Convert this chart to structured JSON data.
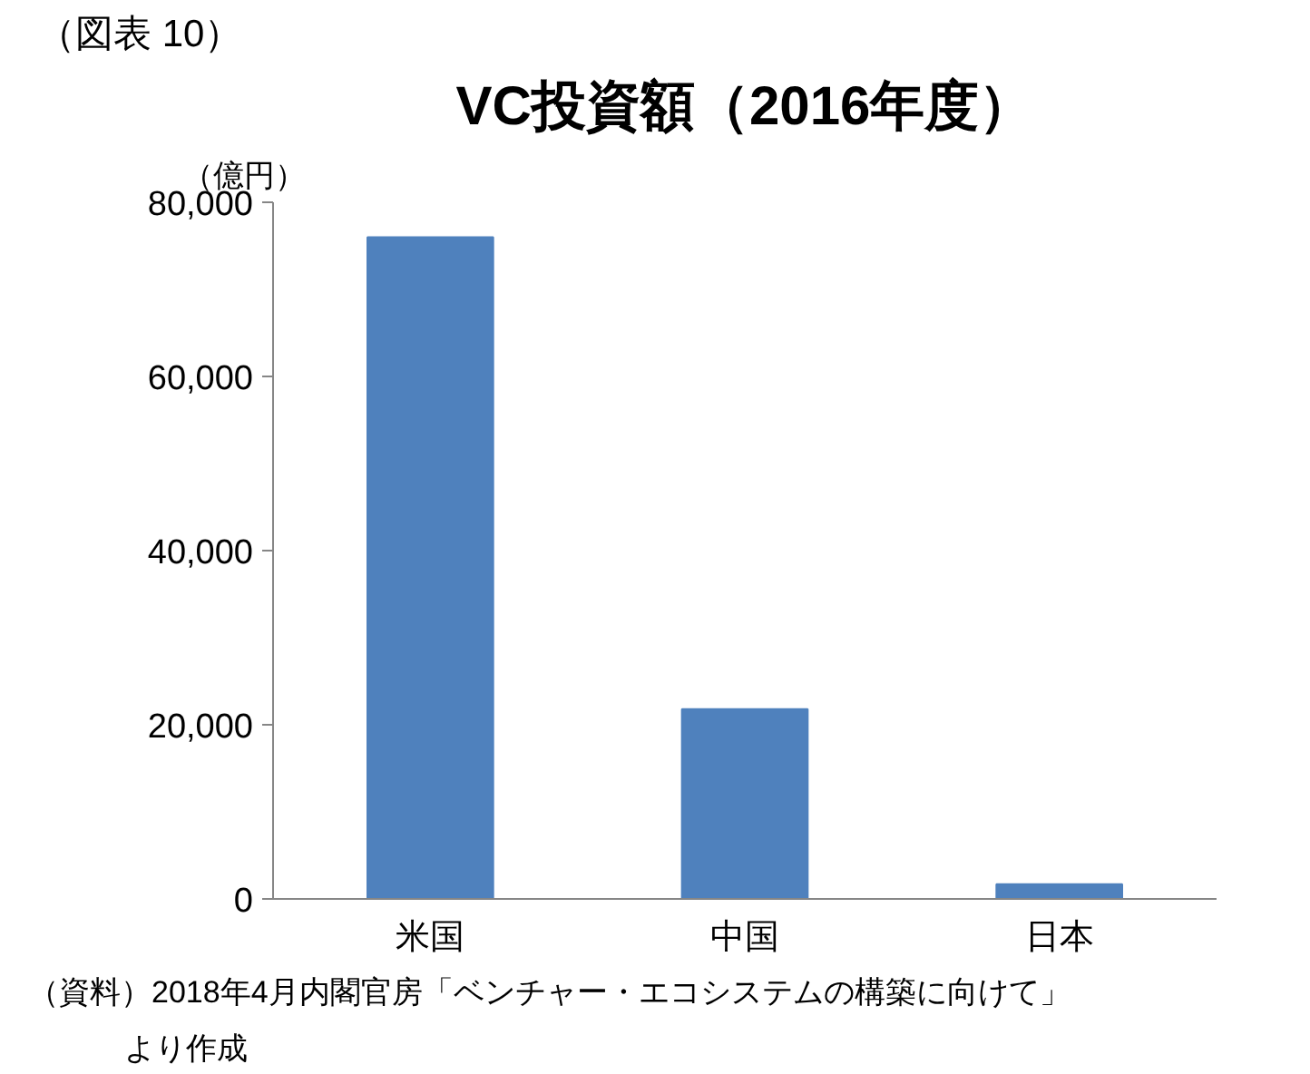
{
  "chart_data": {
    "type": "bar",
    "title": "VC投資額（2016年度）",
    "ylabel": "（億円）",
    "categories": [
      "米国",
      "中国",
      "日本"
    ],
    "values": [
      76000,
      21800,
      1700
    ],
    "color": "#4f81bd",
    "ylim": [
      0,
      80000
    ],
    "yticks": [
      0,
      {
        "value": 20000,
        "label": "20,000"
      },
      {
        "value": 40000,
        "label": "40,000"
      },
      {
        "value": 60000,
        "label": "60,000"
      },
      {
        "value": 80000,
        "label": "80,000"
      }
    ],
    "grid": false,
    "annotations": [
      "（図表 10）",
      "（資料）2018年4月内閣官房「ベンチャー・エコシステムの構築に向けて」",
      "より作成"
    ]
  }
}
